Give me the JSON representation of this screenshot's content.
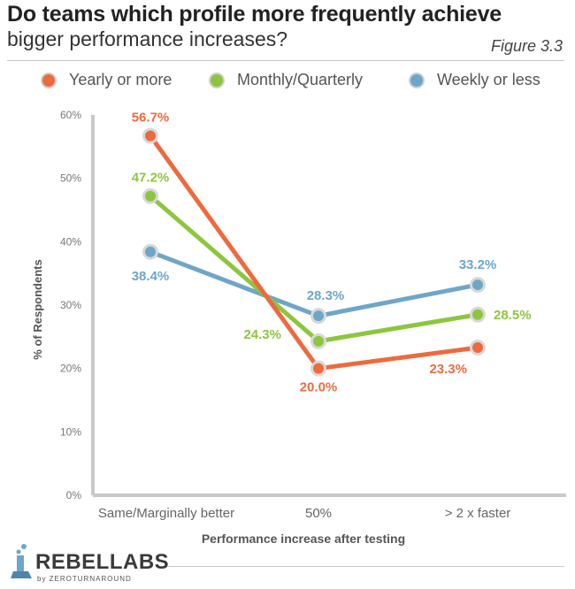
{
  "header": {
    "title": "Do teams which profile more frequently achieve",
    "subtitle": "bigger performance increases?",
    "figure_label": "Figure 3.3"
  },
  "legend": [
    {
      "label": "Yearly or more",
      "color": "#ee6a3d"
    },
    {
      "label": "Monthly/Quarterly",
      "color": "#8cc63f"
    },
    {
      "label": "Weekly or less",
      "color": "#6ea6c8"
    }
  ],
  "logo": {
    "main": "REBELLABS",
    "sub": "by ZEROTURNAROUND"
  },
  "chart_data": {
    "type": "line",
    "categories": [
      "Same/Marginally better",
      "50%",
      "> 2 x faster"
    ],
    "series": [
      {
        "name": "Yearly or more",
        "values": [
          56.7,
          20.0,
          23.3
        ],
        "labels": [
          "56.7%",
          "20.0%",
          "23.3%"
        ],
        "color": "#ee6a3d"
      },
      {
        "name": "Monthly/Quarterly",
        "values": [
          47.2,
          24.3,
          28.5
        ],
        "labels": [
          "47.2%",
          "24.3%",
          "28.5%"
        ],
        "color": "#8cc63f"
      },
      {
        "name": "Weekly or less",
        "values": [
          38.4,
          28.3,
          33.2
        ],
        "labels": [
          "38.4%",
          "28.3%",
          "33.2%"
        ],
        "color": "#6ea6c8"
      }
    ],
    "yticks": [
      "0%",
      "10%",
      "20%",
      "30%",
      "40%",
      "50%",
      "60%"
    ],
    "ylim": [
      0,
      60
    ],
    "xlabel": "Performance increase after testing",
    "ylabel": "% of Respondents",
    "grid": false,
    "legend_position": "top"
  }
}
